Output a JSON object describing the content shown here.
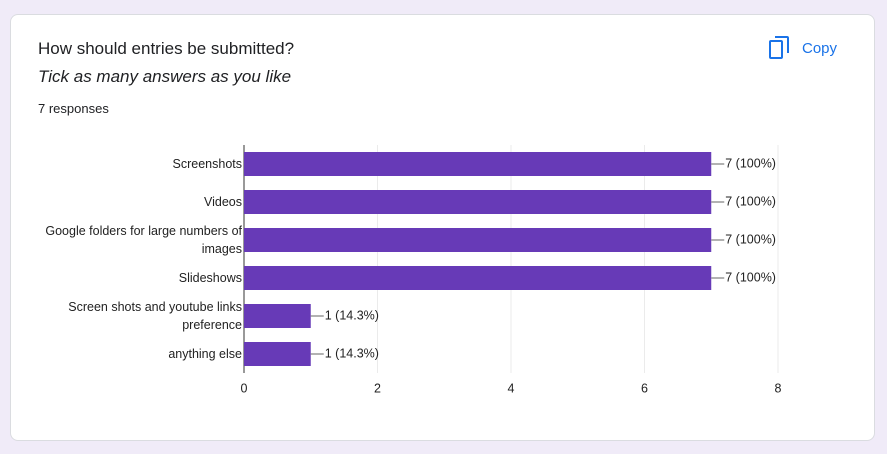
{
  "header": {
    "title": "How should entries be submitted?",
    "subtitle": "Tick as many answers as you like",
    "responses": "7 responses",
    "copy_button": "Copy"
  },
  "chart_data": {
    "type": "hbar",
    "categories": [
      "Screenshots",
      "Videos",
      "Google folders for large numbers of images",
      "Slideshows",
      "Screen shots and youtube links preference",
      "anything else"
    ],
    "values": [
      7,
      7,
      7,
      7,
      1,
      1
    ],
    "value_labels": [
      "7 (100%)",
      "7 (100%)",
      "7 (100%)",
      "7 (100%)",
      "1 (14.3%)",
      "1 (14.3%)"
    ],
    "color": "#673ab7",
    "xlim": [
      0,
      8
    ],
    "xticks": [
      0,
      2,
      4,
      6,
      8
    ],
    "grid": true
  }
}
